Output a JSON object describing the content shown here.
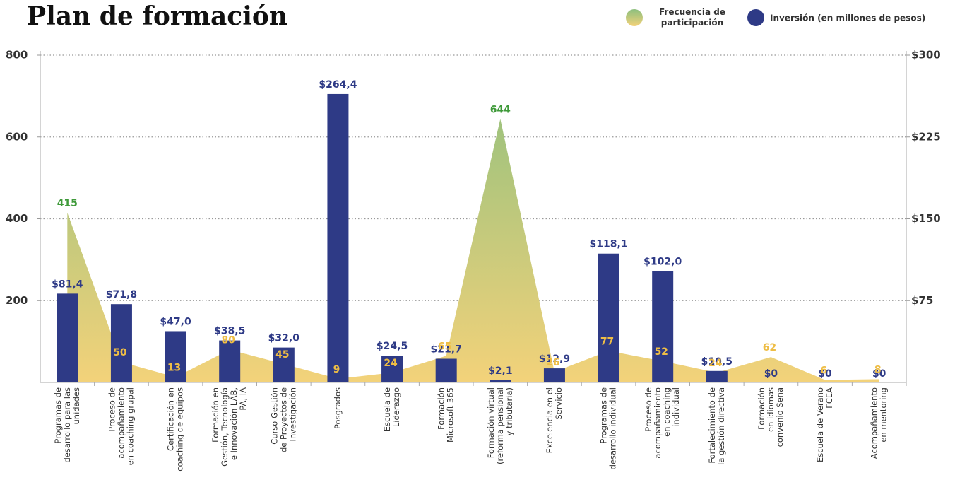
{
  "chart_data": {
    "type": "bar-area",
    "title": "Plan de formación",
    "categories": [
      [
        "Programas de",
        "desarrollo para las",
        "unidades"
      ],
      [
        "Proceso de",
        "acompañamiento",
        "en coaching grupal"
      ],
      [
        "Certificación en",
        "coaching de equipos"
      ],
      [
        "Formación en",
        "Gestión, Tecnología",
        "e Innovación LAB,",
        "PA, IA"
      ],
      [
        "Curso Gestión",
        "de Proyectos de",
        "Investigación"
      ],
      [
        "Posgrados"
      ],
      [
        "Escuela de",
        "Liderazgo"
      ],
      [
        "Formación",
        "Microsoft 365"
      ],
      [
        "Formación virtual",
        "(reforma pensional",
        "y tributaria)"
      ],
      [
        "Excelencia en el",
        "Servicio"
      ],
      [
        "Programas de",
        "desarrollo individual"
      ],
      [
        "Proceso de",
        "acompañamiento",
        "en coaching",
        "individual"
      ],
      [
        "Fortalecimiento de",
        "la gestión directiva"
      ],
      [
        "Formación",
        "en idiomas",
        "convenio Sena"
      ],
      [
        "Escuela de Verano",
        "FCEA"
      ],
      [
        "Acompañamiento",
        "en mentoring"
      ]
    ],
    "series": [
      {
        "name": "Frecuencia de participación",
        "type": "area",
        "axis": "y",
        "color": "#f3d27a",
        "top_color": "#8cbf7e",
        "label_color": "#eebd45",
        "top_label_color": "#3f9a3a",
        "values": [
          415,
          50,
          13,
          80,
          45,
          9,
          24,
          65,
          644,
          26,
          77,
          52,
          24,
          62,
          6,
          8
        ]
      },
      {
        "name": "Inversión (en millones de pesos)",
        "type": "bar",
        "axis": "y2",
        "color": "#2e3a86",
        "values": [
          81.4,
          71.8,
          47.0,
          38.5,
          32.0,
          264.4,
          24.5,
          21.7,
          2.1,
          12.9,
          118.1,
          102.0,
          10.5,
          0,
          0,
          0
        ],
        "value_labels": [
          "$81,4",
          "$71,8",
          "$47,0",
          "$38,5",
          "$32,0",
          "$264,4",
          "$24,5",
          "$21,7",
          "$2,1",
          "$12,9",
          "$118,1",
          "$102,0",
          "$10,5",
          "$0",
          "$0",
          "$0"
        ]
      }
    ],
    "ylim": [
      0,
      800
    ],
    "yticks": [
      200,
      400,
      600,
      800
    ],
    "y2lim": [
      0,
      300
    ],
    "y2ticks": [
      {
        "value": 75,
        "label": "$75"
      },
      {
        "value": 150,
        "label": "$150"
      },
      {
        "value": 225,
        "label": "$225"
      },
      {
        "value": 300,
        "label": "$300"
      }
    ],
    "grid": true
  }
}
